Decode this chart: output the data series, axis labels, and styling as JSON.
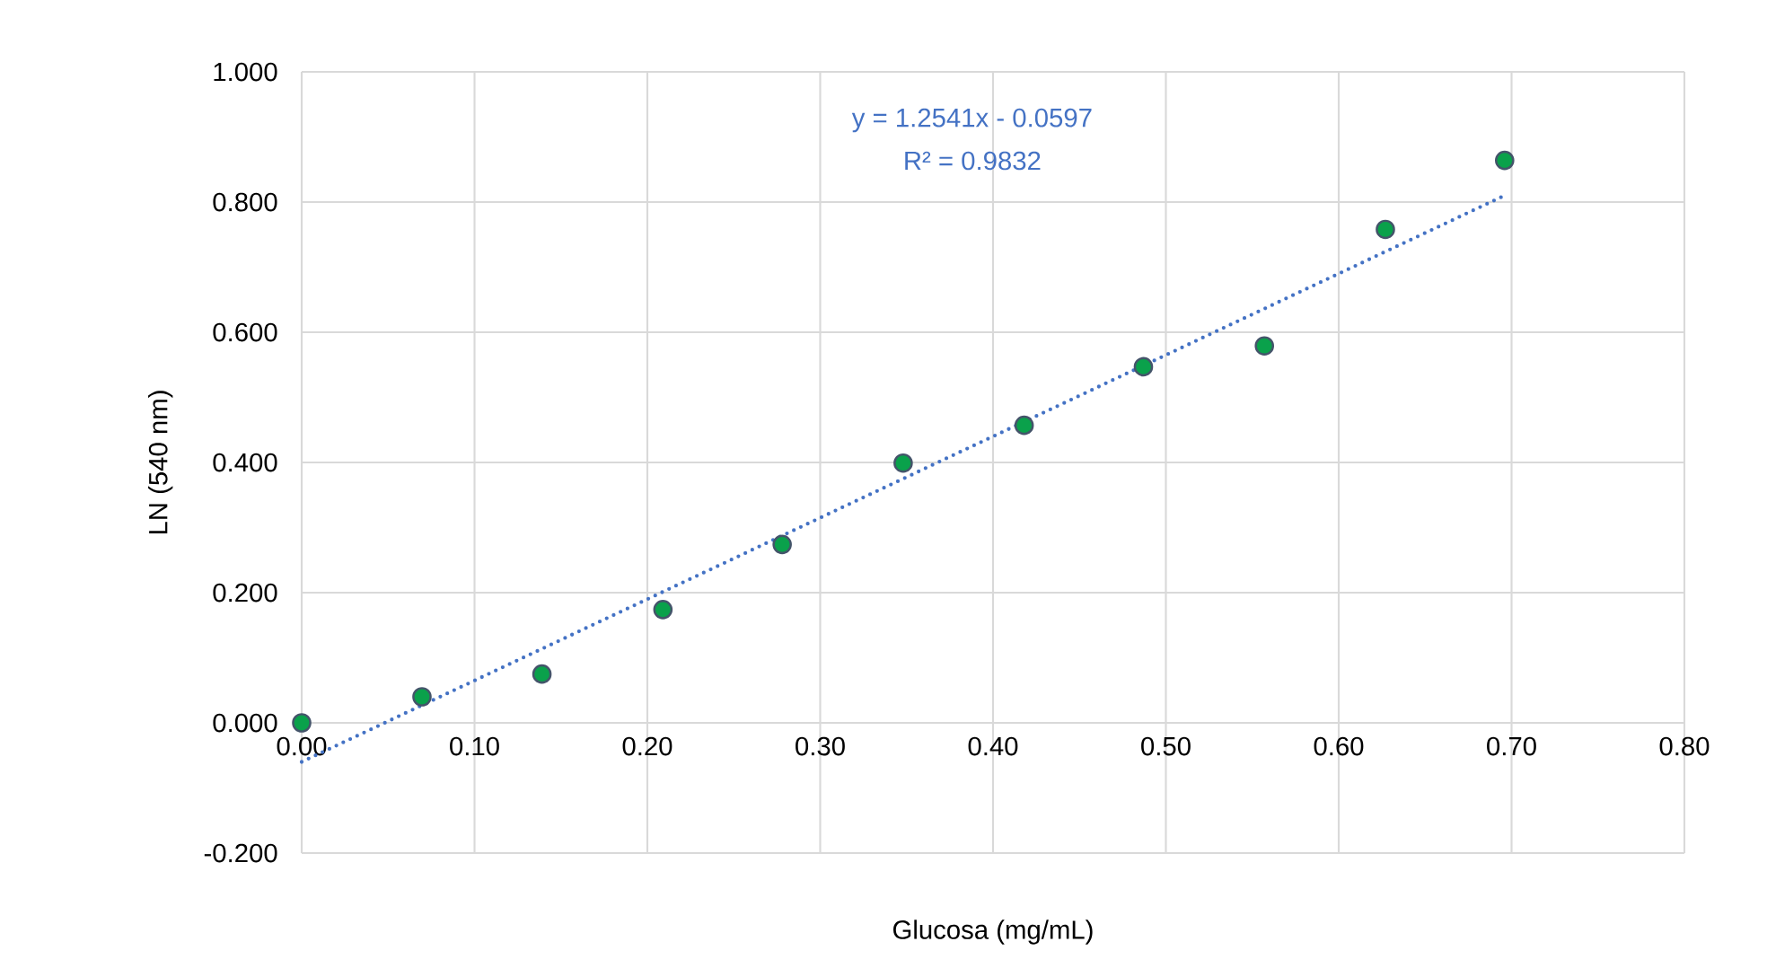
{
  "chart_data": {
    "type": "scatter",
    "xlabel": "Glucosa (mg/mL)",
    "ylabel": "LN (540 nm)",
    "annotations": [
      "y = 1.2541x - 0.0597",
      "R² = 0.9832"
    ],
    "series": [
      {
        "color": "#0aa14b",
        "marker": "circle",
        "x": [
          0,
          0.0696,
          0.139,
          0.209,
          0.278,
          0.348,
          0.418,
          0.487,
          0.557,
          0.627,
          0.696
        ],
        "values": [
          0.0,
          0.04,
          0.075,
          0.174,
          0.274,
          0.399,
          0.457,
          0.547,
          0.579,
          0.758,
          0.864
        ]
      },
      {
        "type": "line",
        "color": "#4472c4",
        "line_style": "dotted",
        "marker": "none",
        "x": [
          0,
          0.696
        ],
        "values": [
          -0.06,
          0.81
        ]
      }
    ],
    "xlim": [
      0,
      0.8
    ],
    "ylim": [
      -0.2,
      1.0
    ],
    "xticks": [
      {
        "value": 0,
        "label": "0.00"
      },
      {
        "value": 0.1,
        "label": "0.10"
      },
      {
        "value": 0.2,
        "label": "0.20"
      },
      {
        "value": 0.3,
        "label": "0.30"
      },
      {
        "value": 0.4,
        "label": "0.40"
      },
      {
        "value": 0.5,
        "label": "0.50"
      },
      {
        "value": 0.6,
        "label": "0.60"
      },
      {
        "value": 0.7,
        "label": "0.70"
      },
      {
        "value": 0.8,
        "label": "0.80"
      }
    ],
    "yticks": [
      {
        "value": -0.2,
        "label": "-0.200"
      },
      {
        "value": 0,
        "label": "0.000"
      },
      {
        "value": 0.2,
        "label": "0.200"
      },
      {
        "value": 0.4,
        "label": "0.400"
      },
      {
        "value": 0.6,
        "label": "0.600"
      },
      {
        "value": 0.8,
        "label": "0.800"
      },
      {
        "value": 1.0,
        "label": "1.000"
      }
    ],
    "grid": true
  }
}
